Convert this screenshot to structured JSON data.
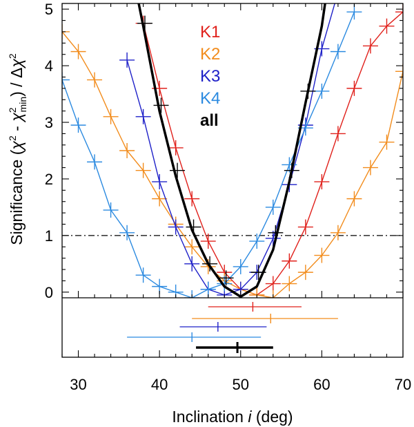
{
  "chart_data": {
    "type": "line",
    "xlabel": "Inclination",
    "xlabel_var": "i",
    "xlabel_unit": "(deg)",
    "ylabel_parts": {
      "lead": "Significance (",
      "chi1": "χ",
      "sup1": "2",
      "mid": " - ",
      "chi2": "χ",
      "sup2": "2",
      "sub2": "min",
      "tail": ") / Δ",
      "chi3": "χ",
      "sup3": "2"
    },
    "xlim": [
      28,
      70
    ],
    "ylim": [
      -0.1,
      5.1
    ],
    "xticks": [
      30,
      40,
      50,
      60,
      70
    ],
    "yticks": [
      0,
      1,
      2,
      3,
      4,
      5
    ],
    "reference_line": {
      "y": 1,
      "style": "dash-dot",
      "color": "#000000"
    },
    "legend": {
      "position": "top-center",
      "entries": [
        "K1",
        "K2",
        "K3",
        "K4",
        "all"
      ]
    },
    "series": [
      {
        "name": "K1",
        "color": "#e0201b",
        "bold": false,
        "points": [
          {
            "x": 38,
            "y": 4.75
          },
          {
            "x": 40,
            "y": 3.6
          },
          {
            "x": 42,
            "y": 2.55
          },
          {
            "x": 44,
            "y": 1.65
          },
          {
            "x": 46,
            "y": 0.9
          },
          {
            "x": 48,
            "y": 0.35
          },
          {
            "x": 50,
            "y": 0.05
          },
          {
            "x": 52,
            "y": -0.05
          },
          {
            "x": 54,
            "y": 0.15
          },
          {
            "x": 56,
            "y": 0.55
          },
          {
            "x": 58,
            "y": 1.15
          },
          {
            "x": 60,
            "y": 1.95
          },
          {
            "x": 62,
            "y": 2.8
          },
          {
            "x": 64,
            "y": 3.6
          },
          {
            "x": 66,
            "y": 4.35
          },
          {
            "x": 68,
            "y": 4.7
          },
          {
            "x": 70,
            "y": 4.95
          }
        ],
        "best_fit": 51.5,
        "err_low": 46,
        "err_high": 57.5
      },
      {
        "name": "K2",
        "color": "#f28c1c",
        "bold": false,
        "points": [
          {
            "x": 28,
            "y": 4.6
          },
          {
            "x": 30,
            "y": 4.25
          },
          {
            "x": 32,
            "y": 3.75
          },
          {
            "x": 34,
            "y": 3.1
          },
          {
            "x": 36,
            "y": 2.5
          },
          {
            "x": 38,
            "y": 2.15
          },
          {
            "x": 40,
            "y": 1.65
          },
          {
            "x": 42,
            "y": 1.2
          },
          {
            "x": 44,
            "y": 0.8
          },
          {
            "x": 46,
            "y": 0.45
          },
          {
            "x": 48,
            "y": 0.2
          },
          {
            "x": 50,
            "y": 0.05
          },
          {
            "x": 52,
            "y": -0.05
          },
          {
            "x": 54,
            "y": -0.1
          },
          {
            "x": 56,
            "y": 0.15
          },
          {
            "x": 58,
            "y": 0.35
          },
          {
            "x": 60,
            "y": 0.65
          },
          {
            "x": 62,
            "y": 1.05
          },
          {
            "x": 64,
            "y": 1.65
          },
          {
            "x": 66,
            "y": 2.2
          },
          {
            "x": 68,
            "y": 2.65
          },
          {
            "x": 70,
            "y": 3.9
          }
        ],
        "best_fit": 53.7,
        "err_low": 44,
        "err_high": 62
      },
      {
        "name": "K3",
        "color": "#1e20c8",
        "bold": false,
        "points": [
          {
            "x": 36,
            "y": 4.1
          },
          {
            "x": 38,
            "y": 3.1
          },
          {
            "x": 40,
            "y": 1.95
          },
          {
            "x": 42,
            "y": 1.15
          },
          {
            "x": 44,
            "y": 0.5
          },
          {
            "x": 46,
            "y": 0.05
          },
          {
            "x": 48,
            "y": -0.05
          },
          {
            "x": 50,
            "y": 0.05
          },
          {
            "x": 52,
            "y": 0.35
          },
          {
            "x": 54,
            "y": 0.95
          },
          {
            "x": 56,
            "y": 1.9
          },
          {
            "x": 58,
            "y": 2.95
          },
          {
            "x": 60,
            "y": 4.3
          },
          {
            "x": 62,
            "y": 5.3
          }
        ],
        "best_fit": 47.2,
        "err_low": 42.5,
        "err_high": 53.2
      },
      {
        "name": "K4",
        "color": "#2b8ae0",
        "bold": false,
        "points": [
          {
            "x": 28,
            "y": 3.75
          },
          {
            "x": 30,
            "y": 2.95
          },
          {
            "x": 32,
            "y": 2.3
          },
          {
            "x": 34,
            "y": 1.45
          },
          {
            "x": 36,
            "y": 1.05
          },
          {
            "x": 38,
            "y": 0.3
          },
          {
            "x": 40,
            "y": 0.1
          },
          {
            "x": 42,
            "y": 0.0
          },
          {
            "x": 44,
            "y": -0.1
          },
          {
            "x": 46,
            "y": 0.05
          },
          {
            "x": 48,
            "y": 0.15
          },
          {
            "x": 50,
            "y": 0.45
          },
          {
            "x": 52,
            "y": 0.9
          },
          {
            "x": 54,
            "y": 1.5
          },
          {
            "x": 56,
            "y": 2.25
          },
          {
            "x": 58,
            "y": 2.9
          },
          {
            "x": 60,
            "y": 3.55
          },
          {
            "x": 62,
            "y": 4.25
          },
          {
            "x": 64,
            "y": 4.95
          }
        ],
        "best_fit": 44,
        "err_low": 36,
        "err_high": 52.5
      },
      {
        "name": "all",
        "color": "#000000",
        "bold": true,
        "line": [
          {
            "x": 37.3,
            "y": 5.2
          },
          {
            "x": 38,
            "y": 4.7
          },
          {
            "x": 40,
            "y": 3.2
          },
          {
            "x": 42,
            "y": 2.05
          },
          {
            "x": 44,
            "y": 1.1
          },
          {
            "x": 46,
            "y": 0.5
          },
          {
            "x": 48,
            "y": 0.1
          },
          {
            "x": 50,
            "y": -0.08
          },
          {
            "x": 52,
            "y": 0.1
          },
          {
            "x": 54,
            "y": 0.75
          },
          {
            "x": 56,
            "y": 1.95
          },
          {
            "x": 58,
            "y": 3.35
          },
          {
            "x": 60,
            "y": 4.7
          },
          {
            "x": 60.5,
            "y": 5.2
          }
        ],
        "markers": [
          {
            "x": 38.2,
            "y": 4.75
          },
          {
            "x": 40.2,
            "y": 3.3
          },
          {
            "x": 42.2,
            "y": 2.15
          },
          {
            "x": 44.2,
            "y": 1.15
          },
          {
            "x": 46.2,
            "y": 0.5
          },
          {
            "x": 48.2,
            "y": 0.25
          },
          {
            "x": 52.2,
            "y": 0.35
          },
          {
            "x": 54.3,
            "y": 1.05
          },
          {
            "x": 56.3,
            "y": 2.15
          },
          {
            "x": 58.3,
            "y": 3.55
          }
        ],
        "best_fit": 49.6,
        "err_low": 44.5,
        "err_high": 54
      }
    ]
  }
}
